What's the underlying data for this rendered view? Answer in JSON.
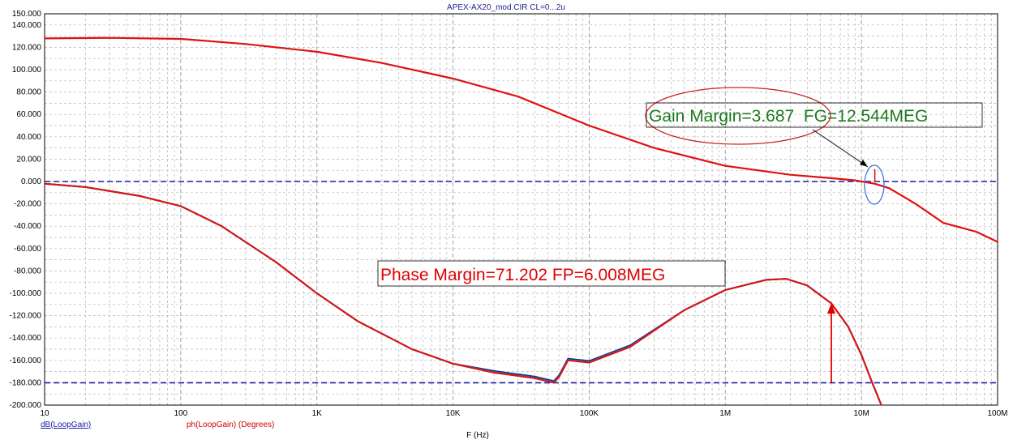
{
  "chart_data": {
    "type": "line",
    "title": "APEX-AX20_mod.CIR CL=0...2u",
    "xlabel": "F (Hz)",
    "xscale": "log",
    "xlim": [
      10,
      100000000
    ],
    "ylim": [
      -200,
      150
    ],
    "grid": true,
    "x_ticks": [
      {
        "value": 10,
        "label": "10"
      },
      {
        "value": 100,
        "label": "100"
      },
      {
        "value": 1000,
        "label": "1K"
      },
      {
        "value": 10000,
        "label": "10K"
      },
      {
        "value": 100000,
        "label": "100K"
      },
      {
        "value": 1000000,
        "label": "1M"
      },
      {
        "value": 10000000,
        "label": "10M"
      },
      {
        "value": 100000000,
        "label": "100M"
      }
    ],
    "y_ticks": [
      {
        "value": 150,
        "label": "150.000"
      },
      {
        "value": 140,
        "label": "140.000"
      },
      {
        "value": 120,
        "label": "120.000"
      },
      {
        "value": 100,
        "label": "100.000"
      },
      {
        "value": 80,
        "label": "80.000"
      },
      {
        "value": 60,
        "label": "60.000"
      },
      {
        "value": 40,
        "label": "40.000"
      },
      {
        "value": 20,
        "label": "20.000"
      },
      {
        "value": 0,
        "label": "0.000"
      },
      {
        "value": -20,
        "label": "-20.000"
      },
      {
        "value": -40,
        "label": "-40.000"
      },
      {
        "value": -60,
        "label": "-60.000"
      },
      {
        "value": -80,
        "label": "-80.000"
      },
      {
        "value": -100,
        "label": "-100.000"
      },
      {
        "value": -120,
        "label": "-120.000"
      },
      {
        "value": -140,
        "label": "-140.000"
      },
      {
        "value": -160,
        "label": "-160.000"
      },
      {
        "value": -180,
        "label": "-180.000"
      },
      {
        "value": -200,
        "label": "-200.000"
      }
    ],
    "reference_lines": [
      0,
      -180
    ],
    "legend": {
      "gain": "dB(LoopGain)",
      "phase": "ph(LoopGain) (Degrees)"
    },
    "colors": {
      "gain": "#e01010",
      "phase": "#e01010",
      "alt1": "#1a2a9a",
      "alt2": "#1f8a70",
      "reference": "#1a1aa8"
    },
    "series": [
      {
        "name": "dB(LoopGain)",
        "x": [
          10,
          30,
          100,
          300,
          1000,
          3000,
          10000,
          30000,
          100000,
          300000,
          1000000,
          3000000,
          6000000,
          9000000,
          12544000,
          16000000,
          25000000,
          40000000,
          70000000,
          100000000
        ],
        "y": [
          128,
          128.5,
          127.5,
          123,
          116,
          106,
          92,
          76,
          50,
          30,
          14,
          6,
          3,
          1,
          -2,
          -6,
          -20,
          -37,
          -45,
          -54
        ]
      },
      {
        "name": "ph(LoopGain) (Degrees)",
        "x": [
          10,
          20,
          50,
          100,
          200,
          500,
          1000,
          2000,
          5000,
          10000,
          20000,
          40000,
          55000,
          60000,
          70000,
          100000,
          200000,
          500000,
          1000000,
          2000000,
          2800000,
          4000000,
          6008000,
          8000000,
          10000000,
          12000000,
          14000000
        ],
        "y": [
          -2,
          -5,
          -13,
          -22,
          -40,
          -72,
          -100,
          -125,
          -150,
          -163,
          -171,
          -176,
          -180,
          -175,
          -160,
          -162,
          -148,
          -115,
          -97,
          -88,
          -87,
          -93,
          -109,
          -130,
          -155,
          -180,
          -200
        ]
      }
    ],
    "annotations": {
      "gain_margin": "Gain Margin=3.687  FG=12.544MEG",
      "phase_margin": "Phase Margin=71.202 FP=6.008MEG",
      "fg_hz": 12544000,
      "fp_hz": 6008000,
      "phase_at_fp": -108.8
    }
  }
}
